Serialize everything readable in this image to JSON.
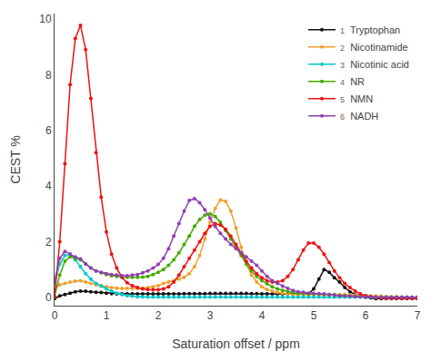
{
  "chart_data": {
    "type": "line",
    "xlabel": "Saturation offset / ppm",
    "ylabel": "CEST %",
    "xlim": [
      0,
      7
    ],
    "ylim": [
      -0.3,
      10.2
    ],
    "xticks": [
      0,
      1,
      2,
      3,
      4,
      5,
      6,
      7
    ],
    "yticks": [
      0,
      2,
      4,
      6,
      8,
      10
    ],
    "grid": false,
    "legend": "upper right",
    "marker": "circle",
    "x": [
      0.0,
      0.1,
      0.2,
      0.3,
      0.4,
      0.5,
      0.6,
      0.7,
      0.8,
      0.9,
      1.0,
      1.1,
      1.2,
      1.3,
      1.4,
      1.5,
      1.6,
      1.7,
      1.8,
      1.9,
      2.0,
      2.1,
      2.2,
      2.3,
      2.4,
      2.5,
      2.6,
      2.7,
      2.8,
      2.9,
      3.0,
      3.1,
      3.2,
      3.3,
      3.4,
      3.5,
      3.6,
      3.7,
      3.8,
      3.9,
      4.0,
      4.1,
      4.2,
      4.3,
      4.4,
      4.5,
      4.6,
      4.7,
      4.8,
      4.9,
      5.0,
      5.1,
      5.2,
      5.3,
      5.4,
      5.5,
      5.6,
      5.7,
      5.8,
      5.9,
      6.0,
      6.1,
      6.2,
      6.3,
      6.4,
      6.5,
      6.6,
      6.7,
      6.8,
      6.9,
      7.0
    ],
    "series": [
      {
        "name": "Tryptophan",
        "number": "1",
        "color": "#111111",
        "values": [
          -0.05,
          0.05,
          0.1,
          0.15,
          0.2,
          0.22,
          0.22,
          0.2,
          0.18,
          0.17,
          0.15,
          0.13,
          0.12,
          0.12,
          0.12,
          0.12,
          0.12,
          0.12,
          0.12,
          0.12,
          0.12,
          0.12,
          0.12,
          0.12,
          0.12,
          0.13,
          0.13,
          0.13,
          0.13,
          0.13,
          0.14,
          0.14,
          0.14,
          0.14,
          0.14,
          0.14,
          0.14,
          0.14,
          0.13,
          0.13,
          0.12,
          0.12,
          0.12,
          0.12,
          0.12,
          0.12,
          0.12,
          0.12,
          0.12,
          0.12,
          0.3,
          0.65,
          1.0,
          0.9,
          0.7,
          0.55,
          0.35,
          0.2,
          0.1,
          0.05,
          0.0,
          -0.02,
          -0.05,
          -0.05,
          -0.05,
          -0.05,
          -0.05,
          -0.05,
          -0.05,
          -0.05,
          -0.05
        ]
      },
      {
        "name": "Nicotinamide",
        "number": "2",
        "color": "#f0a030",
        "values": [
          0.3,
          0.45,
          0.5,
          0.55,
          0.58,
          0.6,
          0.55,
          0.5,
          0.45,
          0.42,
          0.38,
          0.35,
          0.33,
          0.32,
          0.32,
          0.32,
          0.32,
          0.33,
          0.35,
          0.38,
          0.42,
          0.5,
          0.55,
          0.6,
          0.65,
          0.72,
          0.85,
          1.1,
          1.5,
          2.1,
          2.7,
          3.2,
          3.5,
          3.45,
          3.1,
          2.5,
          1.8,
          1.2,
          0.8,
          0.55,
          0.38,
          0.28,
          0.22,
          0.18,
          0.15,
          0.12,
          0.1,
          0.1,
          0.1,
          0.1,
          0.1,
          0.1,
          0.1,
          0.1,
          0.1,
          0.1,
          0.1,
          0.08,
          0.08,
          0.07,
          0.06,
          0.05,
          0.05,
          0.04,
          0.03,
          0.02,
          0.02,
          0.01,
          0.01,
          0.0,
          0.0
        ]
      },
      {
        "name": "Nicotinic acid",
        "number": "3",
        "color": "#00c8c8",
        "values": [
          0.5,
          1.2,
          1.5,
          1.55,
          1.35,
          1.1,
          0.85,
          0.65,
          0.5,
          0.4,
          0.3,
          0.22,
          0.15,
          0.1,
          0.06,
          0.04,
          0.02,
          0.02,
          0.01,
          0.01,
          0.01,
          0.01,
          0.01,
          0.01,
          0.01,
          0.01,
          0.01,
          0.01,
          0.01,
          0.01,
          0.01,
          0.01,
          0.01,
          0.01,
          0.01,
          0.01,
          0.01,
          0.01,
          0.01,
          0.01,
          0.01,
          0.01,
          0.01,
          0.01,
          0.01,
          0.01,
          0.01,
          0.01,
          0.01,
          0.01,
          0.01,
          0.01,
          0.01,
          0.01,
          0.01,
          0.01,
          0.01,
          0.01,
          0.01,
          0.01,
          0.01,
          0.01,
          0.01,
          0.01,
          0.01,
          0.0,
          0.0,
          0.0,
          0.0,
          0.0,
          0.0
        ]
      },
      {
        "name": "NR",
        "number": "4",
        "color": "#44aa00",
        "values": [
          0.05,
          0.8,
          1.3,
          1.45,
          1.4,
          1.35,
          1.2,
          1.05,
          0.95,
          0.88,
          0.82,
          0.78,
          0.75,
          0.73,
          0.72,
          0.72,
          0.72,
          0.73,
          0.75,
          0.82,
          0.9,
          1.0,
          1.15,
          1.35,
          1.6,
          1.9,
          2.2,
          2.55,
          2.8,
          2.95,
          3.0,
          2.9,
          2.7,
          2.4,
          2.1,
          1.8,
          1.5,
          1.2,
          0.95,
          0.75,
          0.6,
          0.48,
          0.38,
          0.3,
          0.25,
          0.2,
          0.17,
          0.15,
          0.13,
          0.12,
          0.12,
          0.12,
          0.1,
          0.1,
          0.08,
          0.06,
          0.05,
          0.04,
          0.03,
          0.02,
          0.01,
          0.01,
          0.0,
          0.0,
          0.0,
          0.0,
          0.0,
          0.0,
          0.0,
          0.0,
          0.0
        ]
      },
      {
        "name": "NMN",
        "number": "5",
        "color": "#ee1111",
        "values": [
          0.0,
          2.0,
          4.8,
          7.65,
          9.3,
          9.78,
          8.9,
          7.15,
          5.2,
          3.6,
          2.35,
          1.55,
          1.05,
          0.72,
          0.52,
          0.42,
          0.35,
          0.3,
          0.28,
          0.27,
          0.27,
          0.3,
          0.38,
          0.55,
          0.8,
          1.1,
          1.4,
          1.7,
          2.0,
          2.3,
          2.55,
          2.65,
          2.6,
          2.45,
          2.2,
          1.9,
          1.6,
          1.3,
          1.05,
          0.85,
          0.7,
          0.6,
          0.55,
          0.55,
          0.6,
          0.75,
          1.0,
          1.35,
          1.7,
          1.95,
          1.95,
          1.8,
          1.55,
          1.25,
          0.95,
          0.7,
          0.5,
          0.35,
          0.22,
          0.12,
          0.06,
          0.02,
          0.0,
          -0.02,
          -0.04,
          -0.04,
          -0.04,
          -0.04,
          -0.04,
          -0.04,
          -0.04
        ]
      },
      {
        "name": "NADH",
        "number": "6",
        "color": "#9040b0",
        "values": [
          0.6,
          1.4,
          1.65,
          1.55,
          1.45,
          1.38,
          1.2,
          1.05,
          0.95,
          0.9,
          0.85,
          0.82,
          0.8,
          0.78,
          0.78,
          0.8,
          0.82,
          0.88,
          0.95,
          1.05,
          1.18,
          1.4,
          1.75,
          2.2,
          2.65,
          3.1,
          3.48,
          3.55,
          3.4,
          3.15,
          2.85,
          2.55,
          2.3,
          2.1,
          1.9,
          1.75,
          1.6,
          1.45,
          1.3,
          1.15,
          0.95,
          0.75,
          0.6,
          0.5,
          0.4,
          0.32,
          0.25,
          0.2,
          0.18,
          0.15,
          0.14,
          0.13,
          0.12,
          0.1,
          0.08,
          0.06,
          0.05,
          0.04,
          0.03,
          0.02,
          0.01,
          0.01,
          0.0,
          0.0,
          0.0,
          0.0,
          0.0,
          0.0,
          0.0,
          0.0,
          0.0
        ]
      }
    ]
  }
}
